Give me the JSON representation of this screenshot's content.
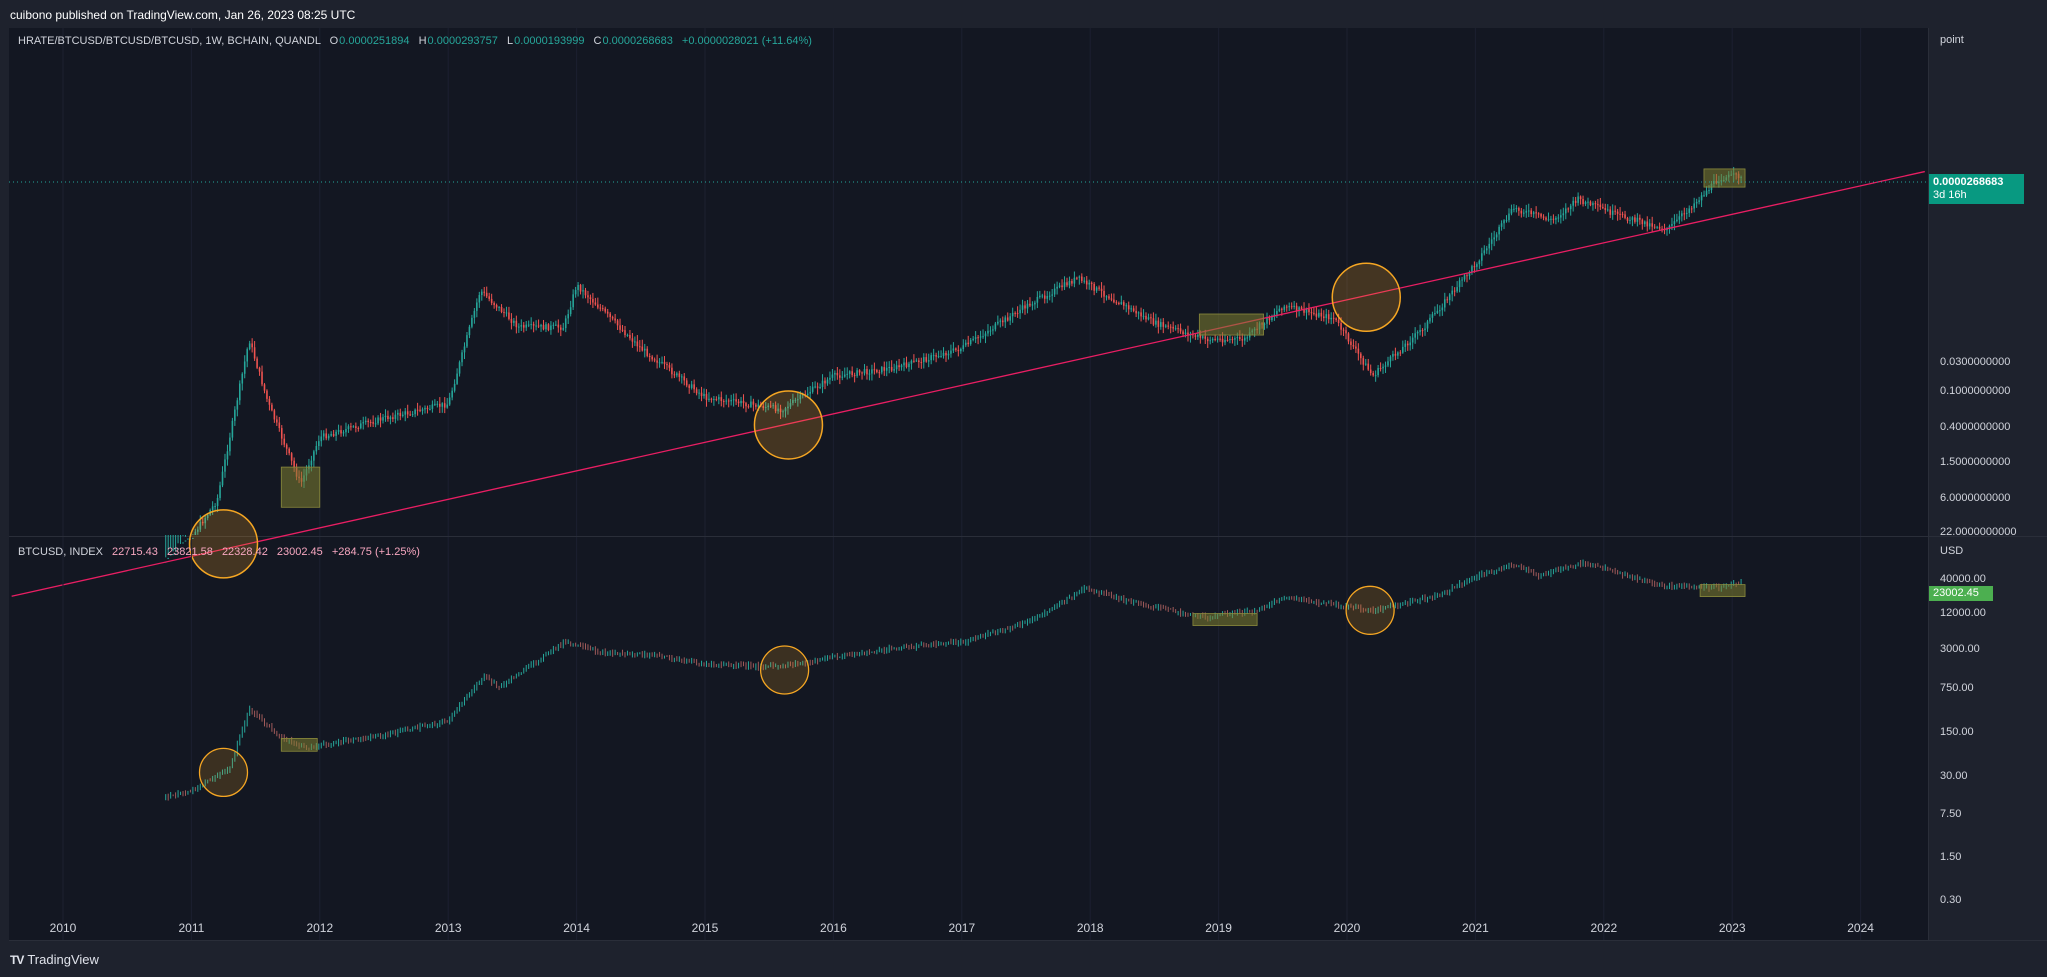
{
  "header": {
    "published": "cuibono published on TradingView.com, Jan 26, 2023 08:25 UTC"
  },
  "footer": {
    "brand": "TradingView",
    "logo": "TV"
  },
  "top_pane": {
    "symbol": "HRATE/BTCUSD/BTCUSD/BTCUSD, 1W, BCHAIN, QUANDL",
    "ohlc": [
      {
        "label": "O",
        "value": "0.0000251894"
      },
      {
        "label": "H",
        "value": "0.0000293757"
      },
      {
        "label": "L",
        "value": "0.0000193999"
      },
      {
        "label": "C",
        "value": "0.0000268683"
      }
    ],
    "change": "+0.0000028021 (+11.64%)",
    "unit": "point",
    "last_price": "0.0000268683",
    "countdown": "3d 16h",
    "y_ticks": [
      "0.0300000000",
      "0.1000000000",
      "0.4000000000",
      "1.5000000000",
      "6.0000000000",
      "22.0000000000"
    ]
  },
  "bottom_pane": {
    "symbol": "BTCUSD, INDEX",
    "ohlc": [
      "22715.43",
      "23821.58",
      "22328.42",
      "23002.45"
    ],
    "change": "+284.75 (+1.25%)",
    "unit": "USD",
    "last_price": "23002.45",
    "y_ticks": [
      "40000.00",
      "12000.00",
      "3000.00",
      "750.00",
      "150.00",
      "30.00",
      "7.50",
      "1.50",
      "0.30"
    ]
  },
  "chart_data": [
    {
      "type": "candlestick",
      "series": [
        {
          "name": "HRATE/BTCUSD/BTCUSD/BTCUSD",
          "x": [
            2010.8,
            2011.0,
            2011.2,
            2011.45,
            2011.6,
            2011.85,
            2012.0,
            2012.5,
            2013.0,
            2013.25,
            2013.55,
            2013.9,
            2014.0,
            2014.5,
            2015.0,
            2015.6,
            2016.0,
            2016.5,
            2017.0,
            2017.5,
            2017.9,
            2018.5,
            2018.9,
            2019.2,
            2019.5,
            2019.9,
            2020.2,
            2020.6,
            2021.0,
            2021.3,
            2021.6,
            2021.8,
            2022.1,
            2022.5,
            2022.9,
            2023.07
          ],
          "values": [
            9,
            4,
            1.2,
            0.006,
            0.05,
            0.7,
            0.15,
            0.08,
            0.05,
            0.0012,
            0.004,
            0.004,
            0.001,
            0.008,
            0.04,
            0.06,
            0.02,
            0.015,
            0.008,
            0.002,
            0.0008,
            0.0035,
            0.006,
            0.006,
            0.002,
            0.003,
            0.02,
            0.004,
            0.0005,
            8e-05,
            0.00012,
            6e-05,
            0.0001,
            0.00016,
            3e-05,
            2.69e-05
          ]
        }
      ],
      "xlabel": "",
      "ylabel": "",
      "x_ticks": [
        "2010",
        "2011",
        "2012",
        "2013",
        "2014",
        "2015",
        "2016",
        "2017",
        "2018",
        "2019",
        "2020",
        "2021",
        "2022",
        "2023",
        "2024"
      ],
      "y_scale": "log",
      "annotations": [
        {
          "type": "trendline",
          "x": [
            2009.6,
            2024.5
          ],
          "values": [
            28,
            2.4e-05
          ]
        },
        {
          "type": "circle",
          "x": 2011.25,
          "value": 5
        },
        {
          "type": "rectangle",
          "x": [
            2011.7,
            2012.0
          ],
          "value_range": [
            0.4,
            1.5
          ]
        },
        {
          "type": "circle",
          "x": 2015.65,
          "value": 0.1
        },
        {
          "type": "rectangle",
          "x": [
            2018.85,
            2019.35
          ],
          "value_range": [
            0.0026,
            0.0052
          ]
        },
        {
          "type": "circle",
          "x": 2020.15,
          "value": 0.0015
        },
        {
          "type": "rectangle",
          "x": [
            2022.78,
            2023.1
          ],
          "value_range": [
            2.2e-05,
            4e-05
          ]
        }
      ]
    },
    {
      "type": "bar",
      "series": [
        {
          "name": "BTCUSD",
          "x": [
            2010.8,
            2011.0,
            2011.3,
            2011.45,
            2011.7,
            2011.9,
            2012.5,
            2013.0,
            2013.27,
            2013.4,
            2013.9,
            2014.2,
            2014.6,
            2015.0,
            2015.6,
            2016.0,
            2016.5,
            2017.0,
            2017.5,
            2017.96,
            2018.3,
            2018.9,
            2019.3,
            2019.5,
            2020.2,
            2020.7,
            2021.0,
            2021.28,
            2021.5,
            2021.85,
            2022.4,
            2022.9,
            2023.07
          ],
          "values": [
            0.2,
            0.3,
            1,
            25,
            5,
            3,
            6,
            13,
            140,
            80,
            900,
            500,
            450,
            270,
            240,
            400,
            650,
            900,
            2500,
            16000,
            8000,
            3500,
            5000,
            10000,
            5000,
            11000,
            30000,
            60000,
            33000,
            65000,
            20000,
            16500,
            23002.45
          ]
        }
      ],
      "xlabel": "",
      "ylabel": "",
      "y_scale": "log",
      "annotations": [
        {
          "type": "rectangle",
          "x": [
            2011.7,
            2011.98
          ],
          "value_range": [
            2.5,
            5
          ]
        },
        {
          "type": "circle",
          "x": 2011.25,
          "value": 0.8
        },
        {
          "type": "circle",
          "x": 2015.62,
          "value": 200
        },
        {
          "type": "rectangle",
          "x": [
            2018.8,
            2019.3
          ],
          "value_range": [
            3000,
            4200
          ]
        },
        {
          "type": "circle",
          "x": 2020.18,
          "value": 5000
        },
        {
          "type": "rectangle",
          "x": [
            2022.75,
            2023.1
          ],
          "value_range": [
            15000,
            20000
          ]
        }
      ]
    }
  ],
  "colors": {
    "background": "#131722",
    "frame": "#1e222d",
    "bull": "#26a69a",
    "bear": "#ef5350",
    "trendline": "#e91e63",
    "circle": "#f5a623",
    "box": "#6b6a2c",
    "text": "#d1d4dc"
  }
}
